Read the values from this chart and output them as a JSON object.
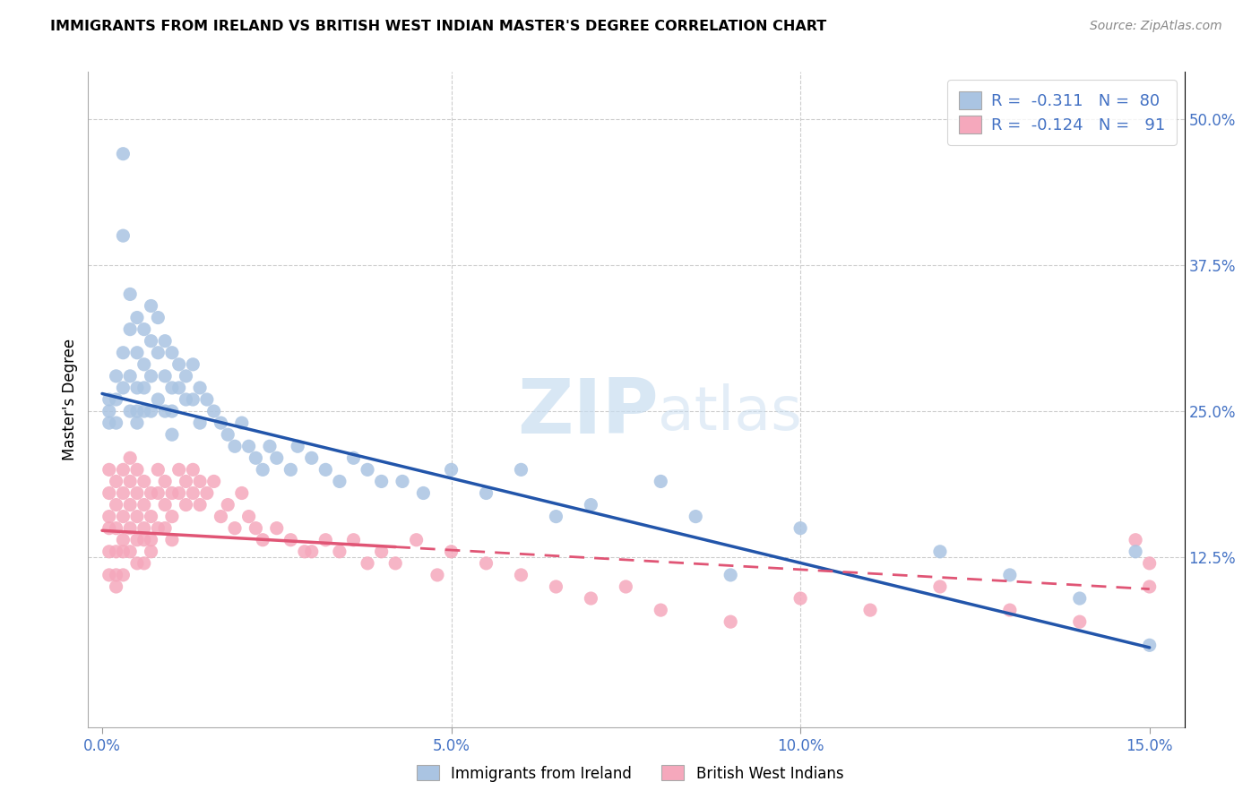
{
  "title": "IMMIGRANTS FROM IRELAND VS BRITISH WEST INDIAN MASTER'S DEGREE CORRELATION CHART",
  "source": "Source: ZipAtlas.com",
  "ylabel": "Master's Degree",
  "ytick_labels": [
    "12.5%",
    "25.0%",
    "37.5%",
    "50.0%"
  ],
  "ytick_values": [
    0.125,
    0.25,
    0.375,
    0.5
  ],
  "xtick_values": [
    0.0,
    0.05,
    0.1,
    0.15
  ],
  "xtick_labels": [
    "0.0%",
    "5.0%",
    "10.0%",
    "15.0%"
  ],
  "xlim": [
    -0.002,
    0.155
  ],
  "ylim": [
    -0.02,
    0.54
  ],
  "ireland_color": "#aac4e2",
  "bwi_color": "#f5a8bc",
  "ireland_line_color": "#2255aa",
  "bwi_line_color": "#e05575",
  "ireland_R": -0.311,
  "ireland_N": 80,
  "bwi_R": -0.124,
  "bwi_N": 91,
  "legend_label_ireland": "Immigrants from Ireland",
  "legend_label_bwi": "British West Indians",
  "watermark_zip": "ZIP",
  "watermark_atlas": "atlas",
  "background_color": "#ffffff",
  "grid_color": "#cccccc",
  "axis_label_color": "#4472c4",
  "ireland_line_x0": 0.0,
  "ireland_line_y0": 0.265,
  "ireland_line_x1": 0.15,
  "ireland_line_y1": 0.048,
  "bwi_line_x0": 0.0,
  "bwi_line_y0": 0.148,
  "bwi_line_x1": 0.15,
  "bwi_line_y1": 0.098,
  "ireland_scatter_x": [
    0.001,
    0.001,
    0.001,
    0.002,
    0.002,
    0.002,
    0.003,
    0.003,
    0.003,
    0.003,
    0.004,
    0.004,
    0.004,
    0.004,
    0.005,
    0.005,
    0.005,
    0.005,
    0.005,
    0.006,
    0.006,
    0.006,
    0.006,
    0.007,
    0.007,
    0.007,
    0.007,
    0.008,
    0.008,
    0.008,
    0.009,
    0.009,
    0.009,
    0.01,
    0.01,
    0.01,
    0.01,
    0.011,
    0.011,
    0.012,
    0.012,
    0.013,
    0.013,
    0.014,
    0.014,
    0.015,
    0.016,
    0.017,
    0.018,
    0.019,
    0.02,
    0.021,
    0.022,
    0.023,
    0.024,
    0.025,
    0.027,
    0.028,
    0.03,
    0.032,
    0.034,
    0.036,
    0.038,
    0.04,
    0.043,
    0.046,
    0.05,
    0.055,
    0.06,
    0.065,
    0.07,
    0.08,
    0.085,
    0.09,
    0.1,
    0.12,
    0.13,
    0.14,
    0.148,
    0.15
  ],
  "ireland_scatter_y": [
    0.26,
    0.25,
    0.24,
    0.28,
    0.26,
    0.24,
    0.47,
    0.4,
    0.3,
    0.27,
    0.35,
    0.32,
    0.28,
    0.25,
    0.33,
    0.3,
    0.27,
    0.25,
    0.24,
    0.32,
    0.29,
    0.27,
    0.25,
    0.34,
    0.31,
    0.28,
    0.25,
    0.33,
    0.3,
    0.26,
    0.31,
    0.28,
    0.25,
    0.3,
    0.27,
    0.25,
    0.23,
    0.29,
    0.27,
    0.28,
    0.26,
    0.29,
    0.26,
    0.27,
    0.24,
    0.26,
    0.25,
    0.24,
    0.23,
    0.22,
    0.24,
    0.22,
    0.21,
    0.2,
    0.22,
    0.21,
    0.2,
    0.22,
    0.21,
    0.2,
    0.19,
    0.21,
    0.2,
    0.19,
    0.19,
    0.18,
    0.2,
    0.18,
    0.2,
    0.16,
    0.17,
    0.19,
    0.16,
    0.11,
    0.15,
    0.13,
    0.11,
    0.09,
    0.13,
    0.05
  ],
  "bwi_scatter_x": [
    0.001,
    0.001,
    0.001,
    0.001,
    0.001,
    0.001,
    0.002,
    0.002,
    0.002,
    0.002,
    0.002,
    0.002,
    0.003,
    0.003,
    0.003,
    0.003,
    0.003,
    0.003,
    0.004,
    0.004,
    0.004,
    0.004,
    0.004,
    0.005,
    0.005,
    0.005,
    0.005,
    0.005,
    0.006,
    0.006,
    0.006,
    0.006,
    0.006,
    0.007,
    0.007,
    0.007,
    0.007,
    0.008,
    0.008,
    0.008,
    0.009,
    0.009,
    0.009,
    0.01,
    0.01,
    0.01,
    0.011,
    0.011,
    0.012,
    0.012,
    0.013,
    0.013,
    0.014,
    0.014,
    0.015,
    0.016,
    0.017,
    0.018,
    0.019,
    0.02,
    0.021,
    0.022,
    0.023,
    0.025,
    0.027,
    0.029,
    0.03,
    0.032,
    0.034,
    0.036,
    0.038,
    0.04,
    0.042,
    0.045,
    0.048,
    0.05,
    0.055,
    0.06,
    0.065,
    0.07,
    0.075,
    0.08,
    0.09,
    0.1,
    0.11,
    0.12,
    0.13,
    0.14,
    0.148,
    0.15,
    0.15
  ],
  "bwi_scatter_y": [
    0.2,
    0.18,
    0.16,
    0.15,
    0.13,
    0.11,
    0.19,
    0.17,
    0.15,
    0.13,
    0.11,
    0.1,
    0.2,
    0.18,
    0.16,
    0.14,
    0.13,
    0.11,
    0.21,
    0.19,
    0.17,
    0.15,
    0.13,
    0.2,
    0.18,
    0.16,
    0.14,
    0.12,
    0.19,
    0.17,
    0.15,
    0.14,
    0.12,
    0.18,
    0.16,
    0.14,
    0.13,
    0.2,
    0.18,
    0.15,
    0.19,
    0.17,
    0.15,
    0.18,
    0.16,
    0.14,
    0.2,
    0.18,
    0.19,
    0.17,
    0.2,
    0.18,
    0.19,
    0.17,
    0.18,
    0.19,
    0.16,
    0.17,
    0.15,
    0.18,
    0.16,
    0.15,
    0.14,
    0.15,
    0.14,
    0.13,
    0.13,
    0.14,
    0.13,
    0.14,
    0.12,
    0.13,
    0.12,
    0.14,
    0.11,
    0.13,
    0.12,
    0.11,
    0.1,
    0.09,
    0.1,
    0.08,
    0.07,
    0.09,
    0.08,
    0.1,
    0.08,
    0.07,
    0.14,
    0.12,
    0.1
  ]
}
